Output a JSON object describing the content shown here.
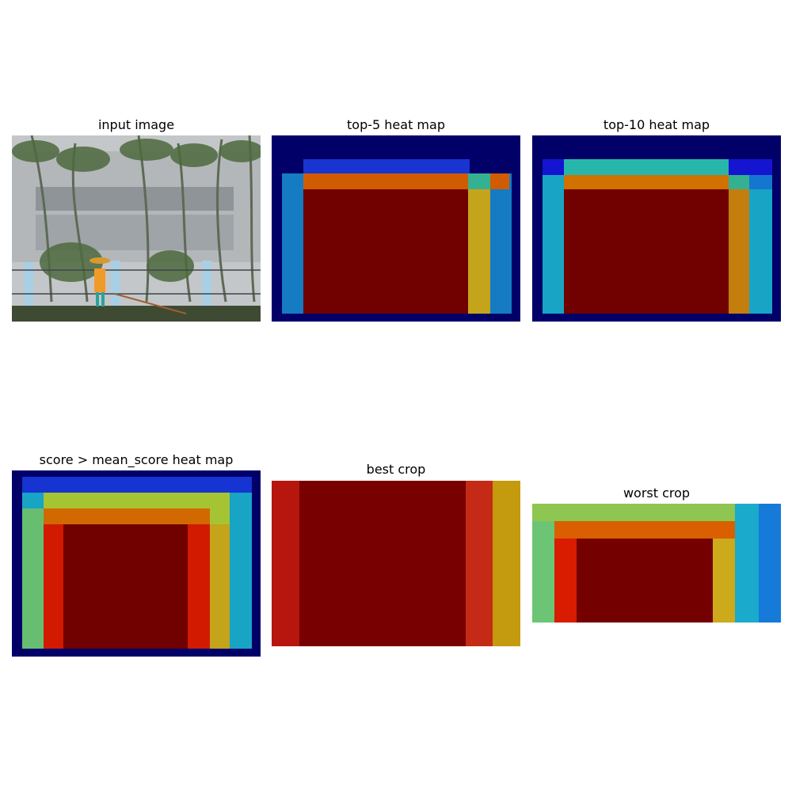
{
  "panels": [
    {
      "title": "input image"
    },
    {
      "title": "top-5 heat map"
    },
    {
      "title": "top-10 heat map"
    },
    {
      "title": "score > mean_score heat map"
    },
    {
      "title": "best crop"
    },
    {
      "title": "worst crop"
    }
  ],
  "colors": {
    "darkblue": "#00007f",
    "blue": "#0000ff",
    "skyblue": "#00a7ff",
    "cyan": "#1ee4f0",
    "aqua": "#40e8c8",
    "green": "#7ee87a",
    "yellow": "#e0f040",
    "gold": "#ffc800",
    "orange": "#ff7000",
    "red": "#ff1e00",
    "darkred": "#7f0000",
    "sky": "#c9cdcf",
    "wall": "#b9bdbf",
    "ground": "#3b4a2e",
    "figure_orange": "#f09a2a"
  }
}
